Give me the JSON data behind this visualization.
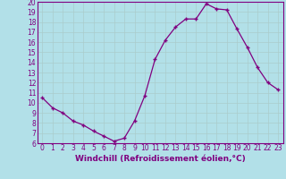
{
  "xlabel": "Windchill (Refroidissement éolien,°C)",
  "hours": [
    0,
    1,
    2,
    3,
    4,
    5,
    6,
    7,
    8,
    9,
    10,
    11,
    12,
    13,
    14,
    15,
    16,
    17,
    18,
    19,
    20,
    21,
    22,
    23
  ],
  "values": [
    10.5,
    9.5,
    9.0,
    8.2,
    7.8,
    7.2,
    6.7,
    6.2,
    6.5,
    8.2,
    10.7,
    14.3,
    16.2,
    17.5,
    18.3,
    18.3,
    19.8,
    19.3,
    19.2,
    17.3,
    15.5,
    13.5,
    12.0,
    11.3
  ],
  "line_color": "#800080",
  "marker_color": "#800080",
  "bg_color": "#b2e0e8",
  "grid_color": "#aacccc",
  "text_color": "#800080",
  "ylim": [
    6,
    20
  ],
  "yticks": [
    6,
    7,
    8,
    9,
    10,
    11,
    12,
    13,
    14,
    15,
    16,
    17,
    18,
    19,
    20
  ],
  "xticks": [
    0,
    1,
    2,
    3,
    4,
    5,
    6,
    7,
    8,
    9,
    10,
    11,
    12,
    13,
    14,
    15,
    16,
    17,
    18,
    19,
    20,
    21,
    22,
    23
  ],
  "tick_fontsize": 5.5,
  "label_fontsize": 6.5,
  "marker": "+",
  "marker_size": 3.5,
  "line_width": 0.9
}
